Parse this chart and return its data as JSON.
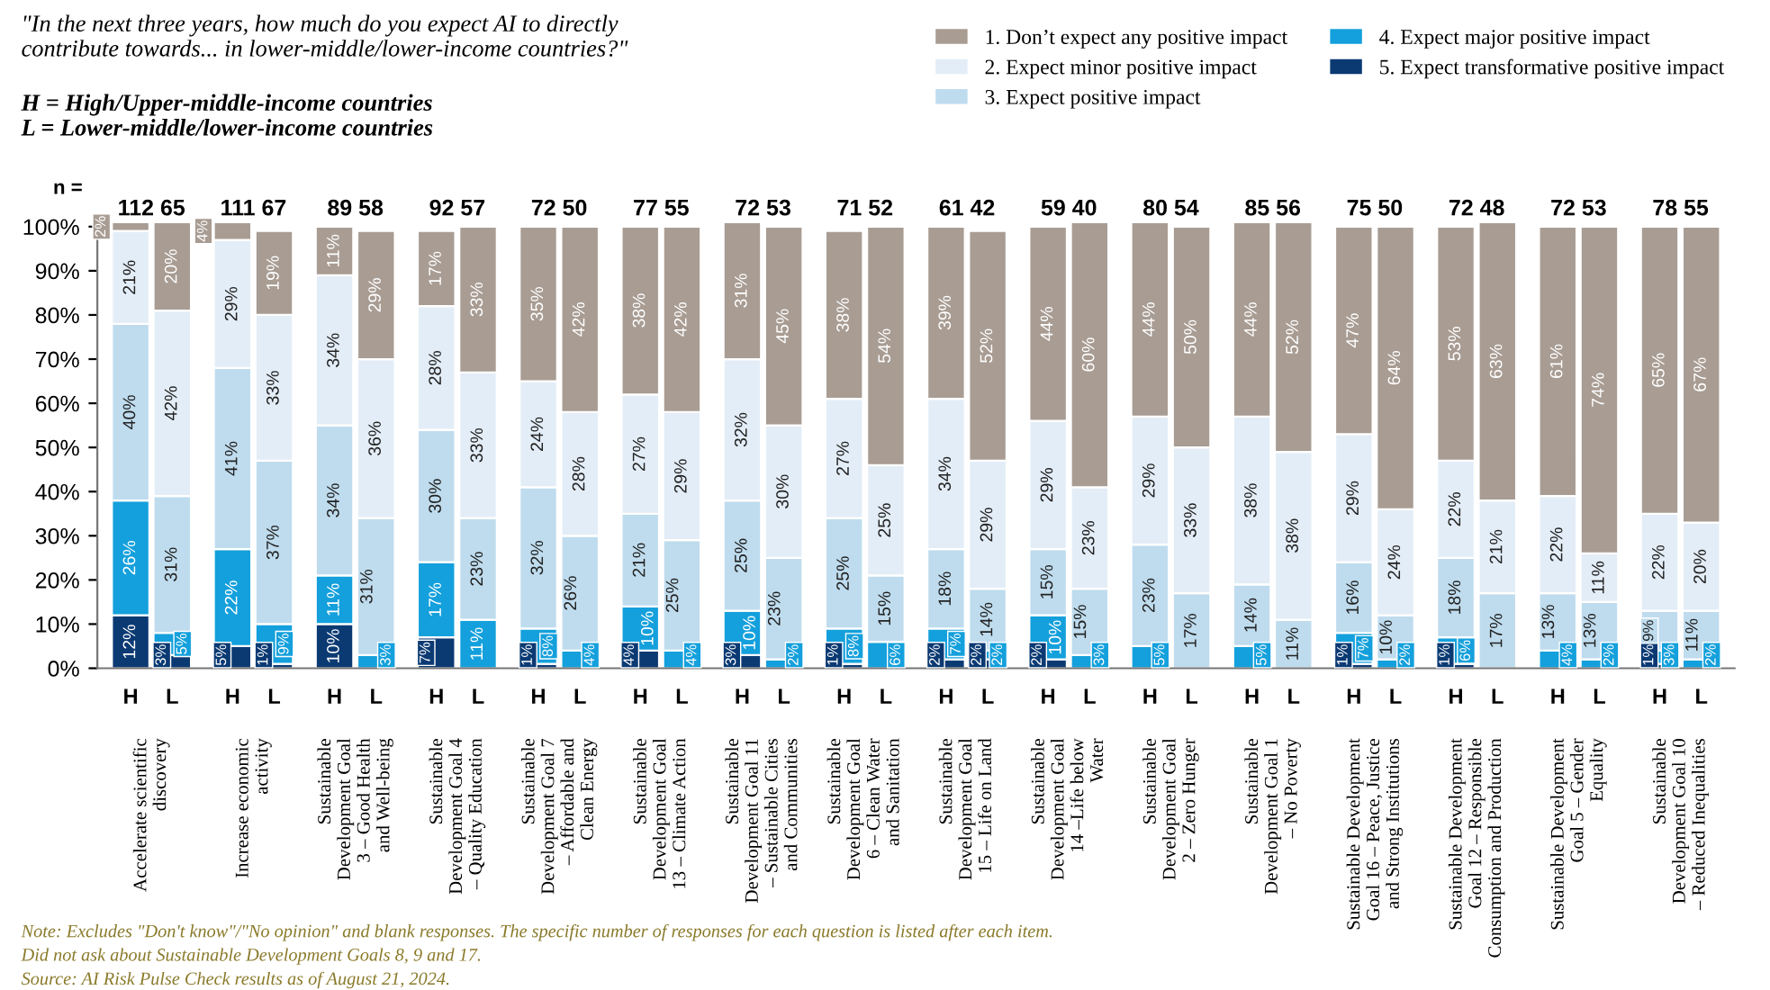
{
  "chart_data": {
    "type": "bar",
    "stacked": true,
    "title": "\"In the next three years, how much do you expect AI to directly\ncontribute towards... in lower-middle/lower-income countries?\"",
    "subtitle": "H = High/Upper-middle-income countries\nL = Lower-middle/lower-income countries",
    "categories": [
      "H",
      "L",
      "H",
      "L",
      "H",
      "L",
      "H",
      "L",
      "H",
      "L",
      "H",
      "L",
      "H",
      "L",
      "H",
      "L",
      "H",
      "L",
      "H",
      "L",
      "H",
      "L",
      "H",
      "L",
      "H",
      "L",
      "H",
      "L",
      "H",
      "L",
      "H",
      "L"
    ],
    "series": [
      {
        "name": "5. Expect transformative positive impact",
        "color": "#0b3a73",
        "values": [
          12,
          3,
          5,
          1,
          10,
          null,
          7,
          null,
          1,
          null,
          4,
          null,
          3,
          null,
          1,
          null,
          2,
          2,
          2,
          null,
          null,
          null,
          null,
          null,
          1,
          null,
          1,
          null,
          null,
          null,
          1,
          null
        ],
        "value_labels": [
          "12%",
          "3%",
          "5%",
          "1%",
          "10%",
          null,
          "7%",
          null,
          "1%",
          null,
          "4%",
          null,
          "3%",
          null,
          "1%",
          null,
          "2%",
          "2%",
          "2%",
          null,
          null,
          null,
          null,
          null,
          "1%",
          null,
          "1%",
          null,
          null,
          null,
          "1%",
          null
        ]
      },
      {
        "name": "4. Expect major positive impact",
        "color": "#14a0dc",
        "values": [
          26,
          5,
          22,
          9,
          11,
          3,
          17,
          11,
          8,
          4,
          10,
          4,
          10,
          2,
          8,
          6,
          7,
          2,
          10,
          3,
          5,
          null,
          5,
          null,
          7,
          2,
          6,
          null,
          4,
          2,
          3,
          2
        ],
        "value_labels": [
          "26%",
          "5%",
          "22%",
          "9%",
          "11%",
          "3%",
          "17%",
          "11%",
          "8%",
          "4%",
          "10%",
          "4%",
          "10%",
          "2%",
          "8%",
          "6%",
          "7%",
          "2%",
          "10%",
          "3%",
          "5%",
          null,
          "5%",
          null,
          "7%",
          "2%",
          "6%",
          null,
          "4%",
          "2%",
          "3%",
          "2%"
        ]
      },
      {
        "name": "3. Expect positive impact",
        "color": "#bfdcee",
        "values": [
          40,
          31,
          41,
          37,
          34,
          31,
          30,
          23,
          32,
          26,
          21,
          25,
          25,
          23,
          25,
          15,
          18,
          14,
          15,
          15,
          23,
          17,
          14,
          11,
          16,
          10,
          18,
          17,
          13,
          13,
          9,
          11
        ],
        "value_labels": [
          "40%",
          "31%",
          "41%",
          "37%",
          "34%",
          "31%",
          "30%",
          "23%",
          "32%",
          "26%",
          "21%",
          "25%",
          "25%",
          "23%",
          "25%",
          "15%",
          "18%",
          "14%",
          "15%",
          "15%",
          "23%",
          "17%",
          "14%",
          "11%",
          "16%",
          "10%",
          "18%",
          "17%",
          "13%",
          "13%",
          "9%",
          "11%"
        ]
      },
      {
        "name": "2. Expect minor positive impact",
        "color": "#e3edf7",
        "values": [
          21,
          42,
          29,
          33,
          34,
          36,
          28,
          33,
          24,
          28,
          27,
          29,
          32,
          30,
          27,
          25,
          34,
          29,
          29,
          23,
          29,
          33,
          38,
          38,
          29,
          24,
          22,
          21,
          22,
          11,
          22,
          20
        ],
        "value_labels": [
          "21%",
          "42%",
          "29%",
          "33%",
          "34%",
          "36%",
          "28%",
          "33%",
          "24%",
          "28%",
          "27%",
          "29%",
          "32%",
          "30%",
          "27%",
          "25%",
          "34%",
          "29%",
          "29%",
          "23%",
          "29%",
          "33%",
          "38%",
          "38%",
          "29%",
          "24%",
          "22%",
          "21%",
          "22%",
          "11%",
          "22%",
          "20%"
        ]
      },
      {
        "name": "1. Don’t expect any positive impact",
        "color": "#a89c93",
        "values": [
          2,
          20,
          4,
          19,
          11,
          29,
          17,
          33,
          35,
          42,
          38,
          42,
          31,
          45,
          38,
          54,
          39,
          52,
          44,
          60,
          44,
          50,
          44,
          52,
          47,
          64,
          53,
          63,
          61,
          74,
          65,
          67
        ],
        "value_labels": [
          "2%",
          "20%",
          "4%",
          "19%",
          "11%",
          "29%",
          "17%",
          "33%",
          "35%",
          "42%",
          "38%",
          "42%",
          "31%",
          "45%",
          "38%",
          "54%",
          "39%",
          "52%",
          "44%",
          "60%",
          "44%",
          "50%",
          "44%",
          "52%",
          "47%",
          "64%",
          "53%",
          "63%",
          "61%",
          "74%",
          "65%",
          "67%"
        ]
      }
    ],
    "ylim": [
      0,
      102
    ],
    "yticks": [
      {
        "value": 0,
        "label": "0%"
      },
      {
        "value": 10,
        "label": "10%"
      },
      {
        "value": 20,
        "label": "20%"
      },
      {
        "value": 30,
        "label": "30%"
      },
      {
        "value": 40,
        "label": "40%"
      },
      {
        "value": 50,
        "label": "50%"
      },
      {
        "value": 60,
        "label": "60%"
      },
      {
        "value": 70,
        "label": "70%"
      },
      {
        "value": 80,
        "label": "80%"
      },
      {
        "value": 90,
        "label": "90%"
      },
      {
        "value": 100,
        "label": "100%"
      }
    ],
    "legend": "top right",
    "grid": false,
    "annotations": [
      "n =",
      "112 65",
      "111 67",
      "89 58",
      "92 57",
      "72 50",
      "77 55",
      "72 53",
      "71 52",
      "61 42",
      "59 40",
      "80 54",
      "85 56",
      "75 50",
      "72 48",
      "72 53",
      "78 55",
      "Accelerate scientific\ndiscovery",
      "Increase economic\nactivity",
      "Sustainable\nDevelopment Goal\n3 – Good Health\nand Well-being",
      "Sustainable\nDevelopment Goal 4\n– Quality Education",
      "Sustainable\nDevelopment Goal 7\n– Affordable and\nClean Energy",
      "Sustainable\nDevelopment Goal\n13 – Climate Action",
      "Sustainable\nDevelopment Goal 11\n– Sustainable Cities\nand Communities",
      "Sustainable\nDevelopment Goal\n6 – Clean Water\nand Sanitation",
      "Sustainable\nDevelopment Goal\n15 – Life on Land",
      "Sustainable\nDevelopment Goal\n14 –Life below\nWater",
      "Sustainable\nDevelopment Goal\n2 – Zero Hunger",
      "Sustainable\nDevelopment Goal 1\n– No Poverty",
      "Sustainable Development\nGoal 16 – Peace, Justice\nand Strong Institutions",
      "Sustainable Development\nGoal 12 – Responsible\nConsumption and Production",
      "Sustainable Development\nGoal 5 – Gender\nEquality",
      "Sustainable\nDevelopment Goal 10\n– Reduced Inequalities",
      "Note: Excludes \"Don't know\"/\"No opinion\" and blank responses. The specific number of responses for each question is listed after each item.",
      "Did not ask about Sustainable Development Goals 8, 9 and 17.",
      "Source: AI Risk Pulse Check results as of August 21, 2024."
    ]
  }
}
